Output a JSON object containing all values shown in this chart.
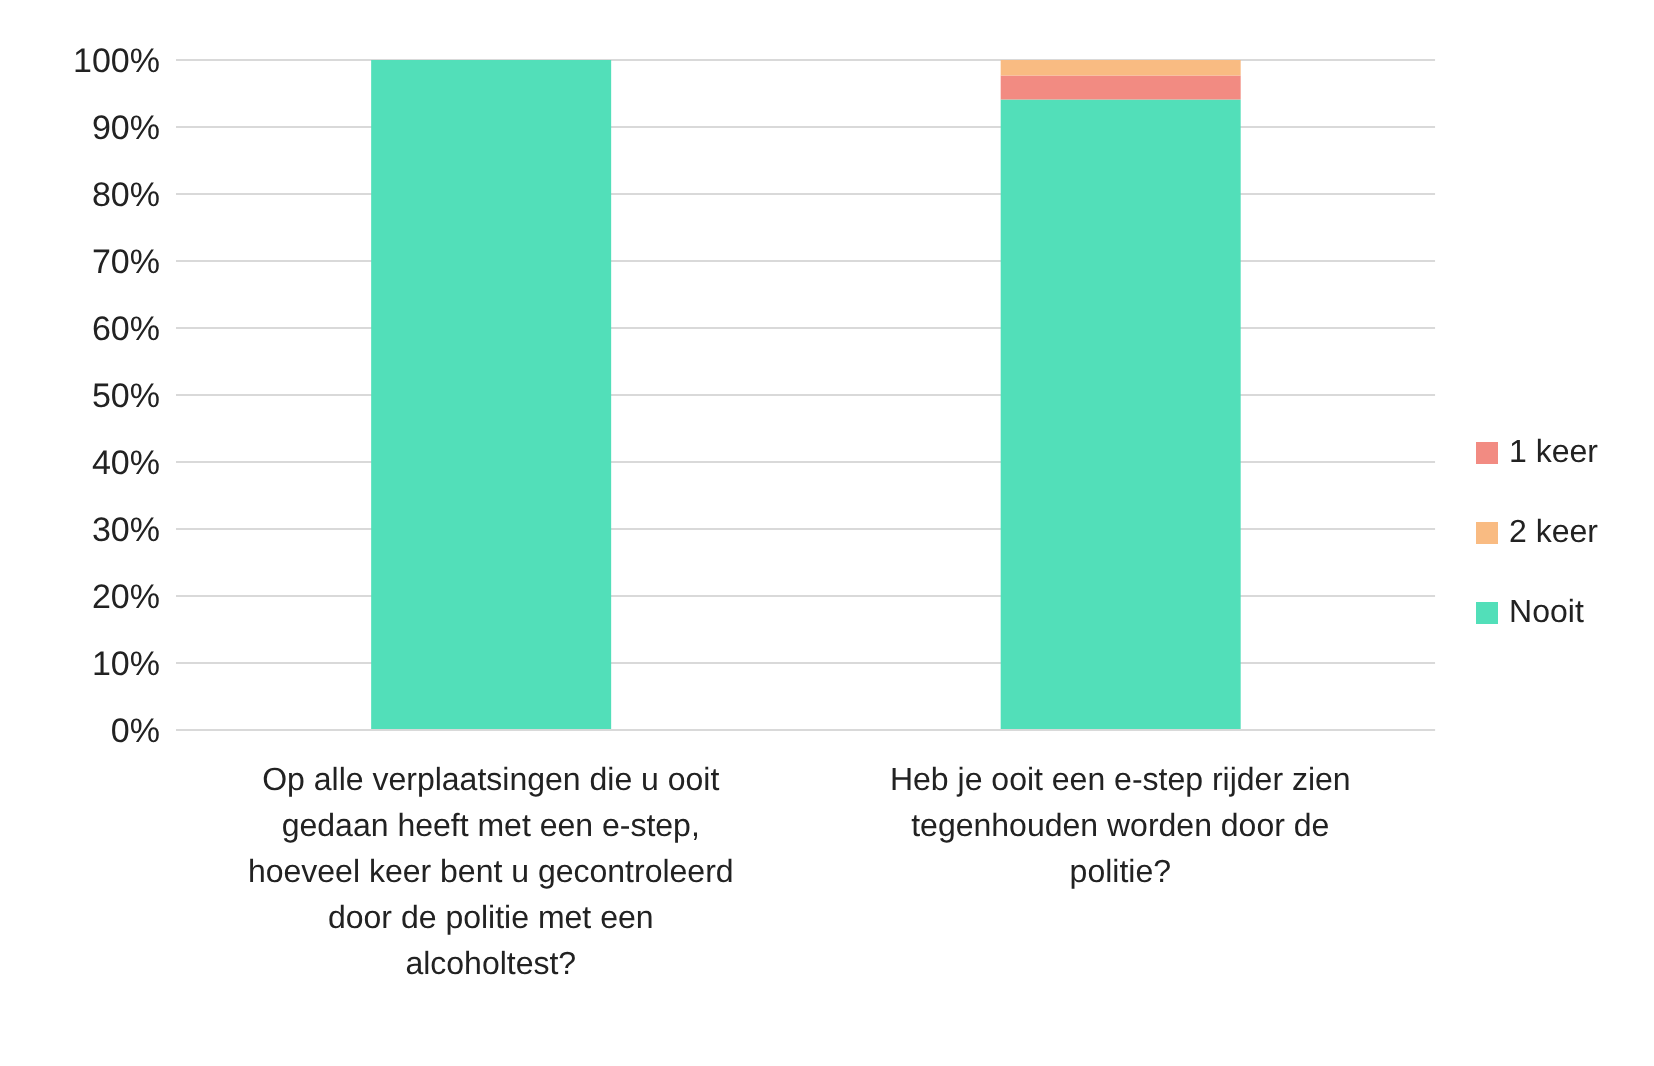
{
  "chart_data": {
    "type": "bar",
    "stacked": true,
    "categories": [
      "Op alle verplaatsingen die u ooit gedaan heeft met een e-step, hoeveel keer bent u gecontroleerd door de politie met een alcoholtest?",
      "Heb je ooit een e-step rijder zien tegenhouden worden door de politie?"
    ],
    "series": [
      {
        "name": "Nooit",
        "color": "#52dfb9",
        "values": [
          100,
          94.1
        ]
      },
      {
        "name": "1 keer",
        "color": "#f28b82",
        "values": [
          0,
          3.6
        ]
      },
      {
        "name": "2 keer",
        "color": "#f9bb82",
        "values": [
          0,
          2.3
        ]
      }
    ],
    "ylim": [
      0,
      100
    ],
    "yticks": [
      {
        "value": 0,
        "label": "0%"
      },
      {
        "value": 10,
        "label": "10%"
      },
      {
        "value": 20,
        "label": "20%"
      },
      {
        "value": 30,
        "label": "30%"
      },
      {
        "value": 40,
        "label": "40%"
      },
      {
        "value": 50,
        "label": "50%"
      },
      {
        "value": 60,
        "label": "60%"
      },
      {
        "value": 70,
        "label": "70%"
      },
      {
        "value": 80,
        "label": "80%"
      },
      {
        "value": 90,
        "label": "90%"
      },
      {
        "value": 100,
        "label": "100%"
      }
    ],
    "grid": "y",
    "legend": "right"
  }
}
